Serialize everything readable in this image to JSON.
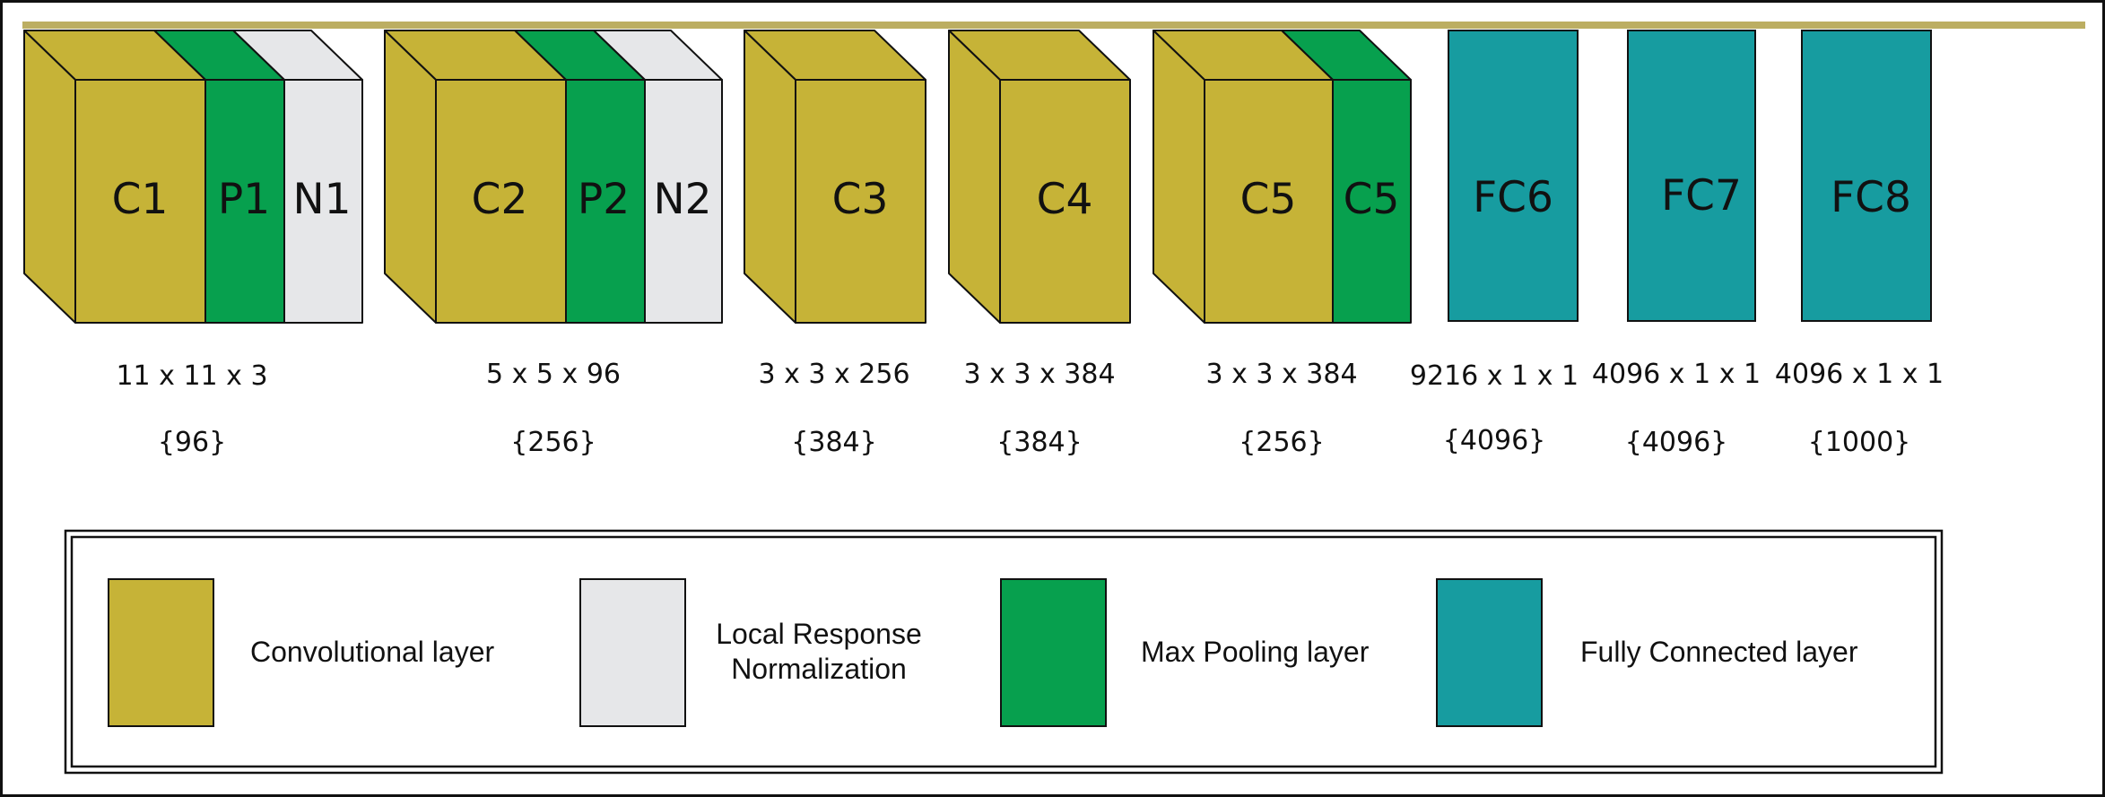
{
  "colors": {
    "convolutional": "#c6b337",
    "normalization": "#e6e7e9",
    "pooling": "#07a04e",
    "fully_connected": "#179ca0",
    "outline": "#111111",
    "top_bar": "#bcae62"
  },
  "blocks": {
    "c1": "C1",
    "p1": "P1",
    "n1": "N1",
    "c2": "C2",
    "p2": "P2",
    "n2": "N2",
    "c3": "C3",
    "c4": "C4",
    "c5": "C5",
    "c5_pool": "C5",
    "fc6": "FC6",
    "fc7": "FC7",
    "fc8": "FC8"
  },
  "dimensions": {
    "g1": {
      "size": "11 x 11 x 3",
      "count": "{96}"
    },
    "g2": {
      "size": "5 x 5 x 96",
      "count": "{256}"
    },
    "g3": {
      "size": "3 x 3 x 256",
      "count": "{384}"
    },
    "g4": {
      "size": "3 x 3 x 384",
      "count": "{384}"
    },
    "g5": {
      "size": "3 x 3 x 384",
      "count": "{256}"
    },
    "g6": {
      "size": "9216 x 1 x 1",
      "count": "{4096}"
    },
    "g7": {
      "size": "4096 x 1 x 1",
      "count": "{4096}"
    },
    "g8": {
      "size": "4096 x 1 x 1",
      "count": "{1000}"
    }
  },
  "legend": {
    "convolutional": "Convolutional layer",
    "normalization_line1": "Local Response",
    "normalization_line2": "Normalization",
    "pooling": "Max Pooling layer",
    "fully_connected": "Fully Connected layer"
  }
}
